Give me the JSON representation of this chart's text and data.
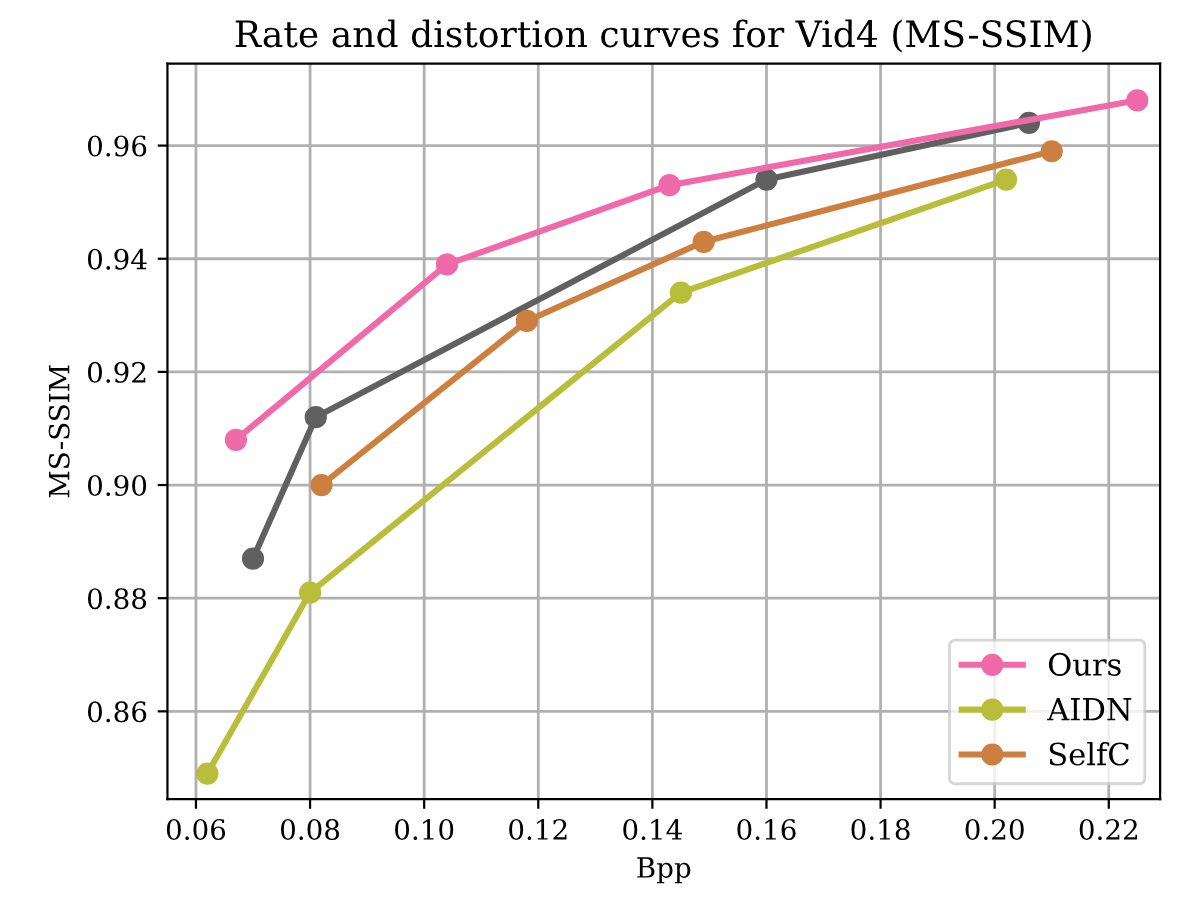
{
  "chart_data": {
    "type": "line",
    "title": "Rate and distortion curves for Vid4 (MS-SSIM)",
    "xlabel": "Bpp",
    "ylabel": "MS-SSIM",
    "xlim": [
      0.055,
      0.229
    ],
    "ylim": [
      0.8445,
      0.9745
    ],
    "xticks": [
      {
        "value": 0.06,
        "label": "0.06"
      },
      {
        "value": 0.08,
        "label": "0.08"
      },
      {
        "value": 0.1,
        "label": "0.10"
      },
      {
        "value": 0.12,
        "label": "0.12"
      },
      {
        "value": 0.14,
        "label": "0.14"
      },
      {
        "value": 0.16,
        "label": "0.16"
      },
      {
        "value": 0.18,
        "label": "0.18"
      },
      {
        "value": 0.2,
        "label": "0.20"
      },
      {
        "value": 0.22,
        "label": "0.22"
      }
    ],
    "yticks": [
      {
        "value": 0.86,
        "label": "0.86"
      },
      {
        "value": 0.88,
        "label": "0.88"
      },
      {
        "value": 0.9,
        "label": "0.90"
      },
      {
        "value": 0.92,
        "label": "0.92"
      },
      {
        "value": 0.94,
        "label": "0.94"
      },
      {
        "value": 0.96,
        "label": "0.96"
      }
    ],
    "grid": true,
    "legend": "bottom right",
    "marker": "circle",
    "line_style": "solid",
    "series": [
      {
        "color": "#606060",
        "x": [
          0.07,
          0.081,
          0.16,
          0.206
        ],
        "values": [
          0.887,
          0.912,
          0.954,
          0.964
        ]
      },
      {
        "name": "Ours",
        "color": "#f06aaa",
        "x": [
          0.067,
          0.104,
          0.143,
          0.225
        ],
        "values": [
          0.908,
          0.939,
          0.953,
          0.968
        ]
      },
      {
        "name": "AIDN",
        "color": "#b8bd3a",
        "x": [
          0.062,
          0.08,
          0.145,
          0.202
        ],
        "values": [
          0.849,
          0.881,
          0.934,
          0.954
        ]
      },
      {
        "name": "SelfC",
        "color": "#cd7f3f",
        "x": [
          0.082,
          0.118,
          0.149,
          0.21
        ],
        "values": [
          0.9,
          0.929,
          0.943,
          0.959
        ]
      }
    ]
  }
}
